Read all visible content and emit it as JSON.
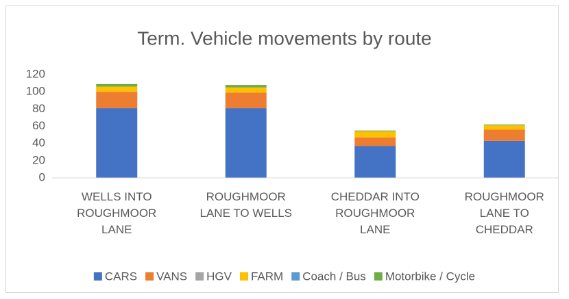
{
  "chart_data": {
    "type": "stacked_bar",
    "title": "Term. Vehicle movements by route",
    "categories": [
      "WELLS INTO ROUGHMOOR LANE",
      "ROUGHMOOR LANE TO WELLS",
      "CHEDDAR INTO ROUGHMOOR LANE",
      "ROUGHMOOR LANE TO CHEDDAR"
    ],
    "series": [
      {
        "name": "CARS",
        "color": "#4472c4",
        "values": [
          81,
          81,
          37,
          43
        ]
      },
      {
        "name": "VANS",
        "color": "#ed7d31",
        "values": [
          19,
          18,
          10,
          13
        ]
      },
      {
        "name": "HGV",
        "color": "#a5a5a5",
        "values": [
          0,
          0,
          0,
          0
        ]
      },
      {
        "name": "FARM",
        "color": "#ffc000",
        "values": [
          6,
          6,
          7,
          5
        ]
      },
      {
        "name": "Coach / Bus",
        "color": "#5b9bd5",
        "values": [
          0,
          0,
          0,
          0
        ]
      },
      {
        "name": "Motorbike / Cycle",
        "color": "#70ad47",
        "values": [
          3,
          3,
          1,
          1
        ]
      }
    ],
    "ylim": [
      0,
      120
    ],
    "yticks": [
      0,
      20,
      40,
      60,
      80,
      100,
      120
    ],
    "grid": false,
    "legend": "bottom"
  }
}
